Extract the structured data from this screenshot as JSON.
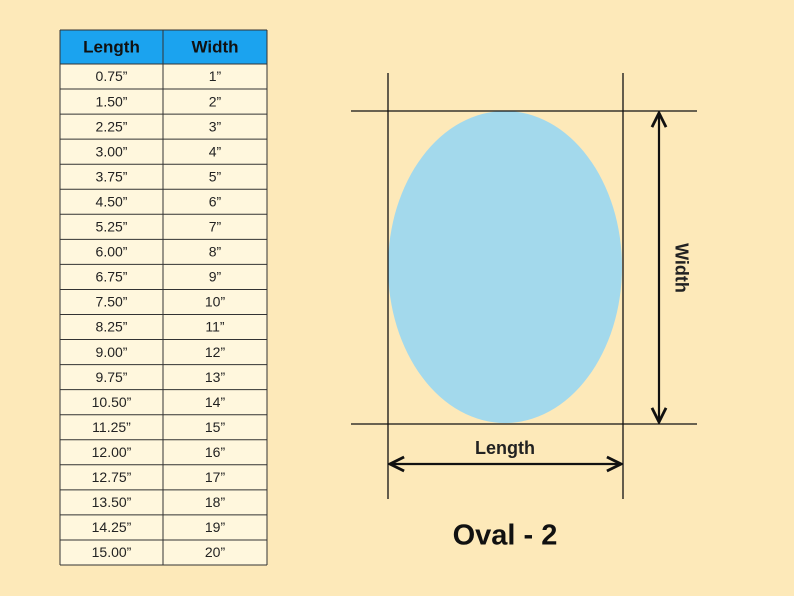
{
  "table": {
    "header": [
      "Length",
      "Width"
    ],
    "rows": [
      [
        "0.75”",
        "1”"
      ],
      [
        "1.50”",
        "2”"
      ],
      [
        "2.25”",
        "3”"
      ],
      [
        "3.00”",
        "4”"
      ],
      [
        "3.75”",
        "5”"
      ],
      [
        "4.50”",
        "6”"
      ],
      [
        "5.25”",
        "7”"
      ],
      [
        "6.00”",
        "8”"
      ],
      [
        "6.75”",
        "9”"
      ],
      [
        "7.50”",
        "10”"
      ],
      [
        "8.25”",
        "11”"
      ],
      [
        "9.00”",
        "12”"
      ],
      [
        "9.75”",
        "13”"
      ],
      [
        "10.50”",
        "14”"
      ],
      [
        "11.25”",
        "15”"
      ],
      [
        "12.00”",
        "16”"
      ],
      [
        "12.75”",
        "17”"
      ],
      [
        "13.50”",
        "18”"
      ],
      [
        "14.25”",
        "19”"
      ],
      [
        "15.00”",
        "20”"
      ]
    ]
  },
  "diagram": {
    "length_label": "Length",
    "width_label": "Width",
    "title": "Oval - 2"
  }
}
